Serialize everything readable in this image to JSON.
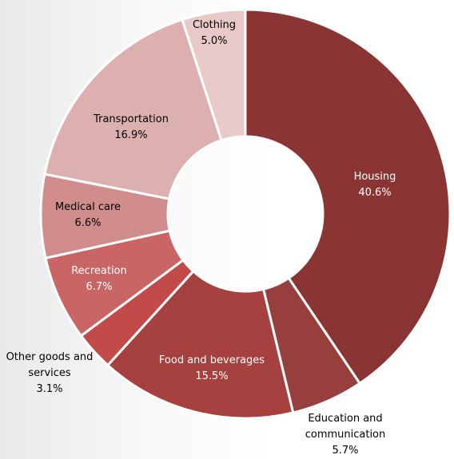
{
  "chart_data": {
    "type": "donut",
    "categories": [
      "Housing",
      "Education and communication",
      "Food and beverages",
      "Other goods and services",
      "Recreation",
      "Medical care",
      "Transportation",
      "Clothing"
    ],
    "values": [
      40.6,
      5.7,
      15.5,
      3.1,
      6.7,
      6.6,
      16.9,
      5.0
    ],
    "value_labels": [
      "40.6%",
      "5.7%",
      "15.5%",
      "3.1%",
      "6.7%",
      "6.6%",
      "16.9%",
      "5.0%"
    ],
    "colors": [
      "#8a3533",
      "#973f3c",
      "#a6413f",
      "#c24a48",
      "#c96665",
      "#d08d8c",
      "#ddb0b0",
      "#e8c9c7"
    ]
  }
}
